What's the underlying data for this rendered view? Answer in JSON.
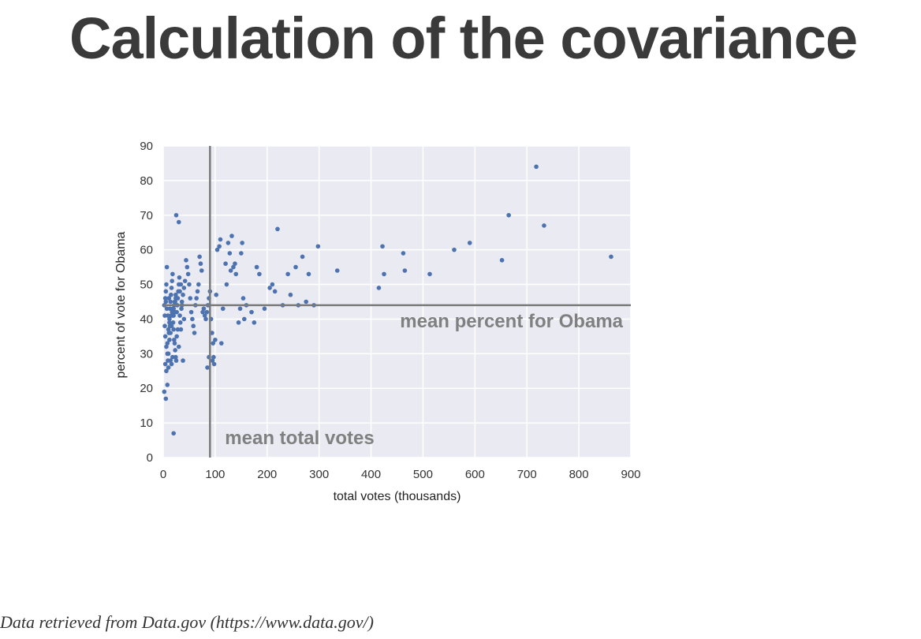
{
  "slide": {
    "title": "Calculation of the covariance",
    "footer": "Data retrieved from Data.gov (https://www.data.gov/)"
  },
  "chart_data": {
    "type": "scatter",
    "xlabel": "total votes (thousands)",
    "ylabel": "percent of vote for Obama",
    "xlim": [
      0,
      900
    ],
    "ylim": [
      0,
      90
    ],
    "xticks": [
      0,
      100,
      200,
      300,
      400,
      500,
      600,
      700,
      800,
      900
    ],
    "yticks": [
      0,
      10,
      20,
      30,
      40,
      50,
      60,
      70,
      80,
      90
    ],
    "grid": true,
    "background_color": "#eaeaf2",
    "point_color": "#4c72b0",
    "mean_line_color": "#7a7a7a",
    "annotations": {
      "mean_y_label": "mean percent for Obama",
      "mean_x_label": "mean total votes"
    },
    "mean_x": 90,
    "mean_y": 44,
    "points": [
      [
        2,
        19
      ],
      [
        5,
        17
      ],
      [
        4,
        27
      ],
      [
        6,
        25
      ],
      [
        8,
        21
      ],
      [
        20,
        7
      ],
      [
        3,
        41
      ],
      [
        2,
        44
      ],
      [
        4,
        46
      ],
      [
        5,
        48
      ],
      [
        6,
        50
      ],
      [
        7,
        55
      ],
      [
        3,
        38
      ],
      [
        4,
        35
      ],
      [
        6,
        32
      ],
      [
        8,
        30
      ],
      [
        9,
        28
      ],
      [
        10,
        26
      ],
      [
        11,
        36
      ],
      [
        12,
        40
      ],
      [
        13,
        43
      ],
      [
        14,
        45
      ],
      [
        15,
        47
      ],
      [
        16,
        49
      ],
      [
        17,
        51
      ],
      [
        18,
        53
      ],
      [
        19,
        39
      ],
      [
        20,
        37
      ],
      [
        21,
        34
      ],
      [
        22,
        33
      ],
      [
        23,
        31
      ],
      [
        24,
        29
      ],
      [
        25,
        28
      ],
      [
        26,
        42
      ],
      [
        27,
        44
      ],
      [
        28,
        46
      ],
      [
        29,
        48
      ],
      [
        30,
        50
      ],
      [
        31,
        52
      ],
      [
        32,
        41
      ],
      [
        33,
        39
      ],
      [
        34,
        37
      ],
      [
        35,
        43
      ],
      [
        36,
        45
      ],
      [
        38,
        47
      ],
      [
        40,
        49
      ],
      [
        42,
        51
      ],
      [
        44,
        57
      ],
      [
        46,
        55
      ],
      [
        48,
        53
      ],
      [
        50,
        50
      ],
      [
        52,
        46
      ],
      [
        54,
        42
      ],
      [
        56,
        40
      ],
      [
        58,
        38
      ],
      [
        60,
        36
      ],
      [
        62,
        44
      ],
      [
        64,
        46
      ],
      [
        66,
        48
      ],
      [
        68,
        50
      ],
      [
        70,
        58
      ],
      [
        72,
        56
      ],
      [
        74,
        54
      ],
      [
        76,
        42
      ],
      [
        78,
        43
      ],
      [
        80,
        41
      ],
      [
        82,
        40
      ],
      [
        84,
        42
      ],
      [
        86,
        44
      ],
      [
        88,
        46
      ],
      [
        90,
        48
      ],
      [
        92,
        40
      ],
      [
        94,
        36
      ],
      [
        96,
        33
      ],
      [
        98,
        27
      ],
      [
        25,
        70
      ],
      [
        30,
        68
      ],
      [
        10,
        30
      ],
      [
        12,
        34
      ],
      [
        14,
        36
      ],
      [
        16,
        38
      ],
      [
        18,
        41
      ],
      [
        20,
        43
      ],
      [
        22,
        45
      ],
      [
        24,
        47
      ],
      [
        8,
        33
      ],
      [
        10,
        37
      ],
      [
        12,
        39
      ],
      [
        14,
        28
      ],
      [
        16,
        27
      ],
      [
        18,
        29
      ],
      [
        20,
        41
      ],
      [
        22,
        42
      ],
      [
        24,
        46
      ],
      [
        26,
        35
      ],
      [
        28,
        37
      ],
      [
        30,
        32
      ],
      [
        32,
        48
      ],
      [
        34,
        50
      ],
      [
        36,
        44
      ],
      [
        38,
        28
      ],
      [
        40,
        40
      ],
      [
        15,
        41
      ],
      [
        17,
        42
      ],
      [
        19,
        43
      ],
      [
        21,
        44
      ],
      [
        23,
        45
      ],
      [
        11,
        46
      ],
      [
        13,
        38
      ],
      [
        9,
        41
      ],
      [
        7,
        43
      ],
      [
        5,
        45
      ],
      [
        85,
        26
      ],
      [
        88,
        29
      ],
      [
        95,
        28
      ],
      [
        97,
        29
      ],
      [
        100,
        34
      ],
      [
        102,
        47
      ],
      [
        104,
        60
      ],
      [
        108,
        61
      ],
      [
        110,
        63
      ],
      [
        112,
        33
      ],
      [
        115,
        43
      ],
      [
        120,
        56
      ],
      [
        122,
        50
      ],
      [
        125,
        62
      ],
      [
        128,
        59
      ],
      [
        130,
        54
      ],
      [
        132,
        64
      ],
      [
        135,
        55
      ],
      [
        138,
        56
      ],
      [
        140,
        53
      ],
      [
        145,
        39
      ],
      [
        148,
        43
      ],
      [
        150,
        59
      ],
      [
        152,
        62
      ],
      [
        154,
        46
      ],
      [
        156,
        40
      ],
      [
        160,
        44
      ],
      [
        170,
        42
      ],
      [
        175,
        39
      ],
      [
        180,
        55
      ],
      [
        185,
        53
      ],
      [
        195,
        43
      ],
      [
        205,
        49
      ],
      [
        210,
        50
      ],
      [
        215,
        48
      ],
      [
        220,
        66
      ],
      [
        230,
        44
      ],
      [
        240,
        53
      ],
      [
        245,
        47
      ],
      [
        255,
        55
      ],
      [
        260,
        44
      ],
      [
        268,
        58
      ],
      [
        275,
        45
      ],
      [
        280,
        53
      ],
      [
        290,
        44
      ],
      [
        298,
        61
      ],
      [
        335,
        54
      ],
      [
        415,
        49
      ],
      [
        422,
        61
      ],
      [
        425,
        53
      ],
      [
        462,
        59
      ],
      [
        465,
        54
      ],
      [
        513,
        53
      ],
      [
        560,
        60
      ],
      [
        590,
        62
      ],
      [
        652,
        57
      ],
      [
        665,
        70
      ],
      [
        718,
        84
      ],
      [
        733,
        67
      ],
      [
        862,
        58
      ]
    ]
  }
}
